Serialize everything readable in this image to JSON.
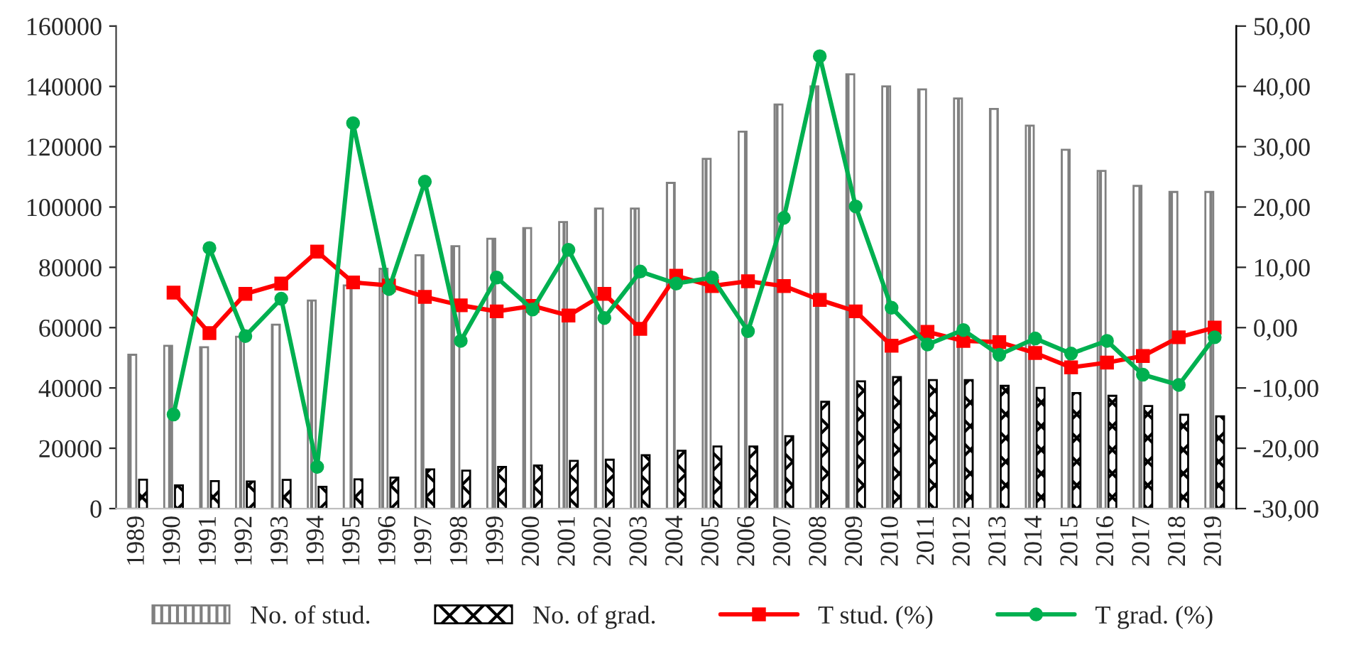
{
  "chart_data": {
    "type": "bar",
    "categories": [
      "1989",
      "1990",
      "1991",
      "1992",
      "1993",
      "1994",
      "1995",
      "1996",
      "1997",
      "1998",
      "1999",
      "2000",
      "2001",
      "2002",
      "2003",
      "2004",
      "2005",
      "2006",
      "2007",
      "2008",
      "2009",
      "2010",
      "2011",
      "2012",
      "2013",
      "2014",
      "2015",
      "2016",
      "2017",
      "2018",
      "2019"
    ],
    "series": [
      {
        "name": "No. of stud.",
        "color": "#808080",
        "values": [
          51000,
          54000,
          53500,
          57000,
          61000,
          69000,
          74000,
          79500,
          84000,
          87000,
          89500,
          93000,
          95000,
          99500,
          99500,
          108000,
          116000,
          125000,
          134000,
          140000,
          144000,
          140000,
          139000,
          136000,
          132500,
          127000,
          119000,
          112000,
          107000,
          105000,
          105000
        ]
      },
      {
        "name": "No. of grad.",
        "color": "#000000",
        "values": [
          9600,
          7700,
          9100,
          9000,
          9500,
          7200,
          9700,
          10300,
          13000,
          12600,
          13800,
          14300,
          15800,
          16200,
          17700,
          19200,
          20600,
          20600,
          24000,
          35400,
          42200,
          43600,
          42600,
          42600,
          40700,
          40000,
          38300,
          37400,
          34000,
          31100,
          30600
        ]
      },
      {
        "name": "T stud. (%)",
        "type": "line",
        "axis": "y2",
        "color": "#ff0000",
        "marker": "square",
        "values": [
          null,
          5.8,
          -0.9,
          5.6,
          7.3,
          12.6,
          7.5,
          7.0,
          5.1,
          3.7,
          2.7,
          3.6,
          2.0,
          5.6,
          -0.2,
          8.6,
          6.9,
          7.7,
          6.9,
          4.6,
          2.7,
          -3.0,
          -0.7,
          -2.2,
          -2.4,
          -4.2,
          -6.6,
          -5.8,
          -4.7,
          -1.6,
          0.0
        ]
      },
      {
        "name": "T grad. (%)",
        "type": "line",
        "axis": "y2",
        "color": "#00b050",
        "marker": "circle",
        "values": [
          null,
          -14.4,
          13.2,
          -1.4,
          4.8,
          -23.1,
          33.9,
          6.4,
          24.2,
          -2.2,
          8.3,
          3.0,
          12.9,
          1.6,
          9.3,
          7.3,
          8.3,
          -0.6,
          18.2,
          45.0,
          20.1,
          3.3,
          -2.8,
          -0.4,
          -4.5,
          -1.8,
          -4.3,
          -2.2,
          -7.8,
          -9.5,
          -1.6
        ]
      }
    ],
    "ylim": [
      0,
      160000
    ],
    "yticks": [
      0,
      20000,
      40000,
      60000,
      80000,
      100000,
      120000,
      140000,
      160000
    ],
    "y2lim": [
      -30,
      50
    ],
    "y2ticks": [
      {
        "value": -30,
        "label": "-30,00"
      },
      {
        "value": -20,
        "label": "-20,00"
      },
      {
        "value": -10,
        "label": "-10,00"
      },
      {
        "value": 0,
        "label": "0,00"
      },
      {
        "value": 10,
        "label": "10,00"
      },
      {
        "value": 20,
        "label": "20,00"
      },
      {
        "value": 30,
        "label": "30,00"
      },
      {
        "value": 40,
        "label": "40,00"
      },
      {
        "value": 50,
        "label": "50,00"
      }
    ],
    "grid": false,
    "legend": "bottom"
  }
}
